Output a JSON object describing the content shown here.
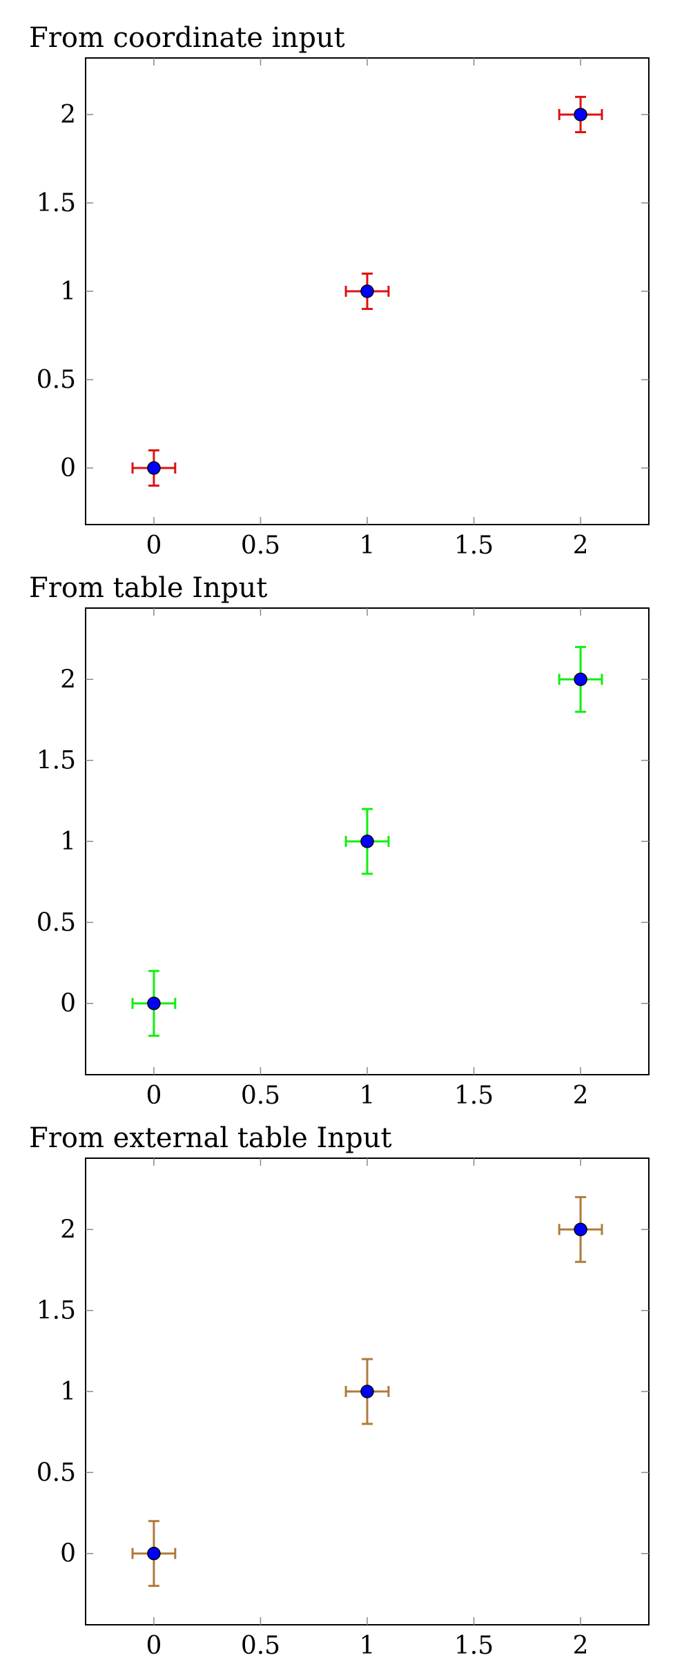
{
  "colors": {
    "marker": "#0000ff",
    "series_1": "#dd1111",
    "series_2": "#11ee11",
    "series_3": "#b07a3a"
  },
  "chart_data": [
    {
      "type": "scatter",
      "title": "From coordinate input",
      "xlabel": "",
      "ylabel": "",
      "xlim": [
        -0.32,
        2.32
      ],
      "ylim": [
        -0.32,
        2.32
      ],
      "x_ticks": [
        "0",
        "0.5",
        "1",
        "1.5",
        "2"
      ],
      "y_ticks": [
        "0",
        "0.5",
        "1",
        "1.5",
        "2"
      ],
      "grid": false,
      "error_color": "#dd1111",
      "series": [
        {
          "x": [
            0,
            1,
            2
          ],
          "y": [
            0,
            1,
            2
          ],
          "x_error": [
            0.1,
            0.1,
            0.1
          ],
          "y_error": [
            0.1,
            0.1,
            0.1
          ]
        }
      ]
    },
    {
      "type": "scatter",
      "title": "From table Input",
      "xlabel": "",
      "ylabel": "",
      "xlim": [
        -0.32,
        2.32
      ],
      "ylim": [
        -0.44,
        2.44
      ],
      "x_ticks": [
        "0",
        "0.5",
        "1",
        "1.5",
        "2"
      ],
      "y_ticks": [
        "0",
        "0.5",
        "1",
        "1.5",
        "2"
      ],
      "grid": false,
      "error_color": "#11ee11",
      "series": [
        {
          "x": [
            0,
            1,
            2
          ],
          "y": [
            0,
            1,
            2
          ],
          "x_error": [
            0.1,
            0.1,
            0.1
          ],
          "y_error": [
            0.2,
            0.2,
            0.2
          ]
        }
      ]
    },
    {
      "type": "scatter",
      "title": "From external table Input",
      "xlabel": "",
      "ylabel": "",
      "xlim": [
        -0.32,
        2.32
      ],
      "ylim": [
        -0.44,
        2.44
      ],
      "x_ticks": [
        "0",
        "0.5",
        "1",
        "1.5",
        "2"
      ],
      "y_ticks": [
        "0",
        "0.5",
        "1",
        "1.5",
        "2"
      ],
      "grid": false,
      "error_color": "#b07a3a",
      "series": [
        {
          "x": [
            0,
            1,
            2
          ],
          "y": [
            0,
            1,
            2
          ],
          "x_error": [
            0.1,
            0.1,
            0.1
          ],
          "y_error": [
            0.2,
            0.2,
            0.2
          ]
        }
      ]
    }
  ]
}
